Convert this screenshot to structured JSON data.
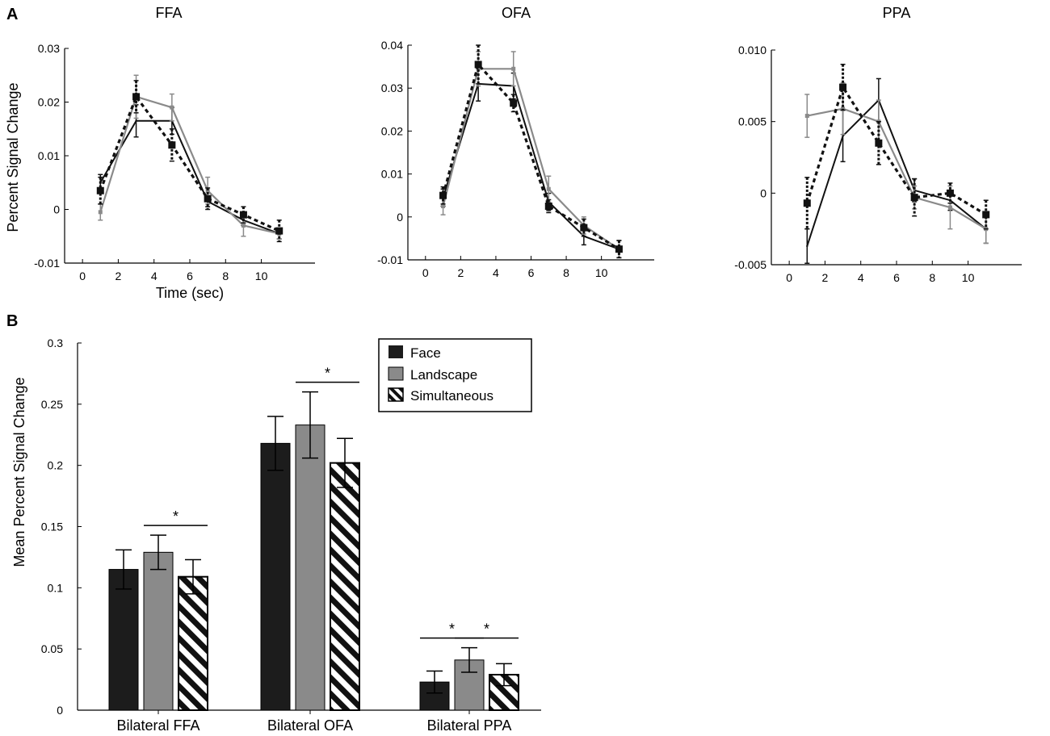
{
  "colors": {
    "face": "#1c1c1c",
    "landscape": "#8a8a8a",
    "simultaneous": "#111111",
    "axis": "#000000",
    "background": "#ffffff"
  },
  "panel_labels": {
    "a": "A",
    "b": "B"
  },
  "chart_data": [
    {
      "id": "ffa",
      "type": "line",
      "title": "FFA",
      "xlabel": "Time (sec)",
      "ylabel": "Percent Signal Change",
      "xlim": [
        -1,
        13
      ],
      "ylim": [
        -0.01,
        0.03
      ],
      "xticks": [
        0,
        2,
        4,
        6,
        8,
        10
      ],
      "xtick_labels": [
        "0",
        "2",
        "4",
        "6",
        "8",
        "10"
      ],
      "yticks": [
        -0.01,
        0,
        0.01,
        0.02,
        0.03
      ],
      "ytick_labels": [
        "-0.01",
        "0",
        "0.01",
        "0.02",
        "0.03"
      ],
      "x": [
        1,
        3,
        5,
        7,
        9,
        11
      ],
      "series": [
        {
          "name": "Face",
          "style": "solid-black",
          "values": [
            0.005,
            0.0165,
            0.0165,
            0.0015,
            -0.002,
            -0.0045
          ],
          "errors": [
            0.0015,
            0.003,
            0.0025,
            0.001,
            0.001,
            0.001
          ]
        },
        {
          "name": "Landscape",
          "style": "solid-gray",
          "values": [
            -0.0005,
            0.021,
            0.019,
            0.0035,
            -0.003,
            -0.0045
          ],
          "errors": [
            0.0015,
            0.004,
            0.0025,
            0.0025,
            0.002,
            0.001
          ]
        },
        {
          "name": "Simultaneous",
          "style": "dashed-black",
          "values": [
            0.0035,
            0.021,
            0.012,
            0.002,
            -0.001,
            -0.004
          ],
          "errors": [
            0.0025,
            0.003,
            0.003,
            0.002,
            0.0015,
            0.002
          ]
        }
      ]
    },
    {
      "id": "ofa",
      "type": "line",
      "title": "OFA",
      "xlabel": "",
      "ylabel": "",
      "xlim": [
        -1,
        13
      ],
      "ylim": [
        -0.01,
        0.04
      ],
      "xticks": [
        0,
        2,
        4,
        6,
        8,
        10
      ],
      "xtick_labels": [
        "0",
        "2",
        "4",
        "6",
        "8",
        "10"
      ],
      "yticks": [
        -0.01,
        0,
        0.01,
        0.02,
        0.03,
        0.04
      ],
      "ytick_labels": [
        "-0.01",
        "0",
        "0.01",
        "0.02",
        "0.03",
        "0.04"
      ],
      "x": [
        1,
        3,
        5,
        7,
        9,
        11
      ],
      "series": [
        {
          "name": "Face",
          "style": "solid-black",
          "values": [
            0.0045,
            0.031,
            0.0305,
            0.0035,
            -0.0045,
            -0.0075
          ],
          "errors": [
            0.002,
            0.004,
            0.003,
            0.002,
            0.002,
            0.002
          ]
        },
        {
          "name": "Landscape",
          "style": "solid-gray",
          "values": [
            0.0025,
            0.0345,
            0.0345,
            0.0065,
            -0.002,
            -0.0075
          ],
          "errors": [
            0.002,
            0.004,
            0.004,
            0.003,
            0.002,
            0.002
          ]
        },
        {
          "name": "Simultaneous",
          "style": "dashed-black",
          "values": [
            0.005,
            0.0355,
            0.0265,
            0.0025,
            -0.0025,
            -0.0075
          ],
          "errors": [
            0.002,
            0.0045,
            0.002,
            0.0015,
            0.002,
            0.002
          ]
        }
      ]
    },
    {
      "id": "ppa",
      "type": "line",
      "title": "PPA",
      "xlabel": "",
      "ylabel": "",
      "xlim": [
        -1,
        13
      ],
      "ylim": [
        -0.005,
        0.01
      ],
      "xticks": [
        0,
        2,
        4,
        6,
        8,
        10
      ],
      "xtick_labels": [
        "0",
        "2",
        "4",
        "6",
        "8",
        "10"
      ],
      "yticks": [
        -0.005,
        0,
        0.005,
        0.01
      ],
      "ytick_labels": [
        "-0.005",
        "0",
        "0.005",
        "0.010"
      ],
      "x": [
        1,
        3,
        5,
        7,
        9,
        11
      ],
      "series": [
        {
          "name": "Face",
          "style": "solid-black",
          "values": [
            -0.0037,
            0.004,
            0.0065,
            0.0002,
            -0.0005,
            -0.0025
          ],
          "errors": [
            0.0012,
            0.0018,
            0.0015,
            0.0008,
            0.0007,
            0.001
          ]
        },
        {
          "name": "Landscape",
          "style": "solid-gray",
          "values": [
            0.0054,
            0.0059,
            0.005,
            -0.0003,
            -0.001,
            -0.0025
          ],
          "errors": [
            0.0015,
            0.0018,
            0.0015,
            0.0008,
            0.0015,
            0.001
          ]
        },
        {
          "name": "Simultaneous",
          "style": "dashed-black",
          "values": [
            -0.0007,
            0.0074,
            0.0035,
            -0.0003,
            0,
            -0.0015
          ],
          "errors": [
            0.0018,
            0.0016,
            0.0015,
            0.0013,
            0.0007,
            0.001
          ]
        }
      ]
    },
    {
      "id": "bar",
      "type": "bar",
      "title": "",
      "xlabel": "",
      "ylabel": "Mean Percent Signal Change",
      "ylim": [
        0,
        0.3
      ],
      "yticks": [
        0,
        0.05,
        0.1,
        0.15,
        0.2,
        0.25,
        0.3
      ],
      "ytick_labels": [
        "0",
        "0.05",
        "0.1",
        "0.15",
        "0.2",
        "0.25",
        "0.3"
      ],
      "categories": [
        "Bilateral FFA",
        "Bilateral OFA",
        "Bilateral PPA"
      ],
      "series": [
        {
          "name": "Face",
          "pattern": "solid-black",
          "values": [
            0.115,
            0.218,
            0.023
          ],
          "errors": [
            0.016,
            0.022,
            0.009
          ]
        },
        {
          "name": "Landscape",
          "pattern": "solid-gray",
          "values": [
            0.129,
            0.233,
            0.041
          ],
          "errors": [
            0.014,
            0.027,
            0.01
          ]
        },
        {
          "name": "Simultaneous",
          "pattern": "hatched",
          "values": [
            0.109,
            0.202,
            0.029
          ],
          "errors": [
            0.014,
            0.02,
            0.009
          ]
        }
      ],
      "legend": [
        "Face",
        "Landscape",
        "Simultaneous"
      ],
      "significance": [
        {
          "category": 0,
          "between": [
            1,
            2
          ],
          "label": "*"
        },
        {
          "category": 1,
          "between": [
            1,
            2
          ],
          "label": "*"
        },
        {
          "category": 2,
          "between": [
            0,
            1
          ],
          "label": "*"
        },
        {
          "category": 2,
          "between": [
            1,
            2
          ],
          "label": "*"
        }
      ]
    }
  ]
}
